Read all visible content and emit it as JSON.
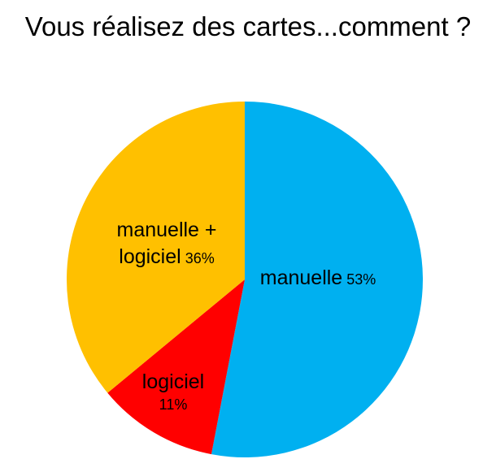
{
  "chart_data": {
    "type": "pie",
    "title": "Vous réalisez des cartes...comment ?",
    "slices": [
      {
        "label": "manuelle",
        "value": 53,
        "value_text": "53%",
        "color": "#00B0F0"
      },
      {
        "label": "logiciel",
        "value": 11,
        "value_text": "11%",
        "color": "#FF0000"
      },
      {
        "label_lines": [
          "manuelle +",
          "logiciel"
        ],
        "value": 36,
        "value_text": "36%",
        "color": "#FFC000"
      }
    ]
  }
}
